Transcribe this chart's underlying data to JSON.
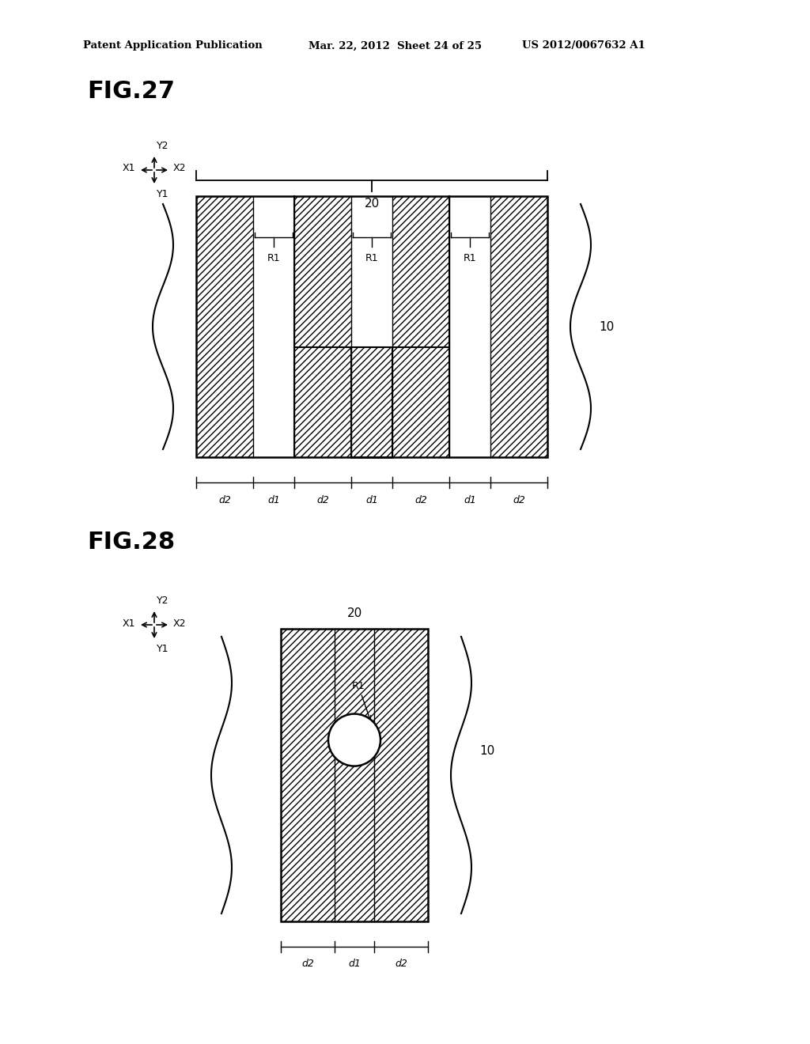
{
  "bg_color": "#ffffff",
  "line_color": "#000000",
  "hatch_color": "#000000",
  "header_left": "Patent Application Publication",
  "header_mid": "Mar. 22, 2012  Sheet 24 of 25",
  "header_right": "US 2012/0067632 A1",
  "fig27_label": "FIG.27",
  "fig28_label": "FIG.28",
  "label_20": "20",
  "label_10": "10",
  "label_R1": "R1",
  "dim_labels_27": [
    "d2",
    "d1",
    "d2",
    "d1",
    "d2",
    "d1",
    "d2"
  ],
  "dim_labels_28": [
    "d2",
    "d1",
    "d2"
  ],
  "axis_labels": [
    "Y2",
    "X1",
    "X2",
    "Y1"
  ]
}
